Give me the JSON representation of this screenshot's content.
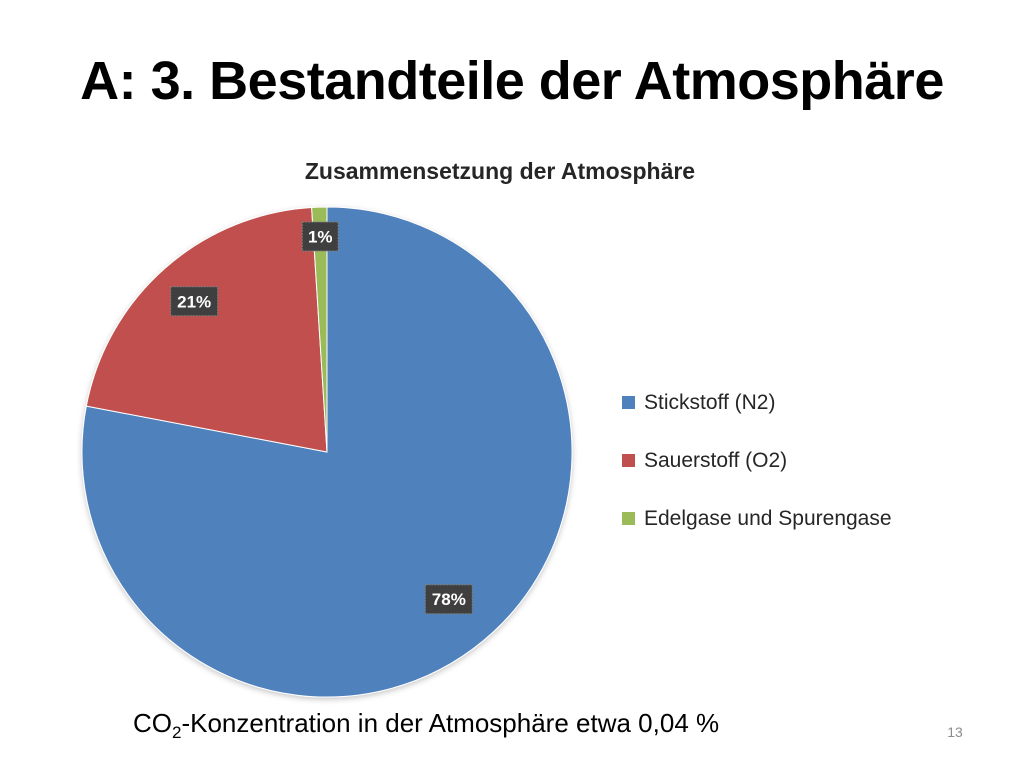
{
  "slide": {
    "title": "A: 3. Bestandteile der Atmosphäre",
    "caption_prefix": "CO",
    "caption_subscript": "2",
    "caption_rest": "-Konzentration in der Atmosphäre etwa 0,04 %",
    "page_number": "13"
  },
  "chart_data": {
    "type": "pie",
    "title": "Zusammensetzung der Atmosphäre",
    "unit": "%",
    "legend_position": "right",
    "slices": [
      {
        "name": "Stickstoff (N2)",
        "value": 78,
        "label": "78%",
        "color": "#4f81bd"
      },
      {
        "name": "Sauerstoff (O2)",
        "value": 21,
        "label": "21%",
        "color": "#c0504d"
      },
      {
        "name": "Edelgase und Spurengase",
        "value": 1,
        "label": "1%",
        "color": "#9bbb59"
      }
    ]
  }
}
